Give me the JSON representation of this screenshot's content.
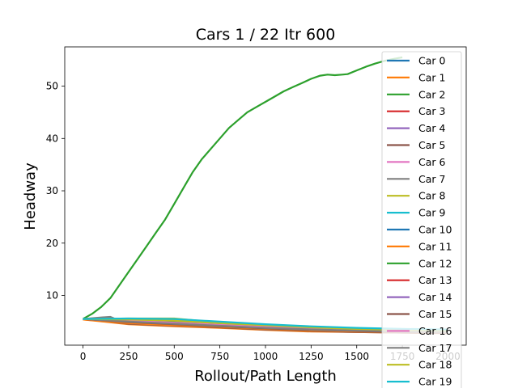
{
  "chart_data": {
    "type": "line",
    "title": "Cars 1 / 22 Itr 600",
    "xlabel": "Rollout/Path Length",
    "ylabel": "Headway",
    "xlim": [
      -100,
      2100
    ],
    "ylim": [
      0.5,
      57.5
    ],
    "xticks": [
      0,
      250,
      500,
      750,
      1000,
      1250,
      1500,
      1750,
      2000
    ],
    "yticks": [
      10,
      20,
      30,
      40,
      50
    ],
    "grid": false,
    "legend_position": "right",
    "series": [
      {
        "name": "Car 0",
        "color": "#1f77b4",
        "x": [
          0,
          250,
          500,
          750,
          1000,
          1250,
          1500,
          1750,
          2000
        ],
        "y": [
          5.5,
          5.0,
          4.7,
          4.3,
          3.9,
          3.6,
          3.4,
          3.2,
          3.1
        ]
      },
      {
        "name": "Car 1",
        "color": "#ff7f0e",
        "x": [
          0,
          250,
          500,
          750,
          1000,
          1250,
          1500,
          1750,
          2000
        ],
        "y": [
          5.4,
          4.5,
          4.1,
          3.8,
          3.4,
          3.1,
          3.0,
          2.9,
          2.8
        ]
      },
      {
        "name": "Car 2",
        "color": "#2ca02c",
        "x": [
          0,
          50,
          100,
          150,
          200,
          250,
          300,
          350,
          400,
          450,
          500,
          550,
          600,
          650,
          700,
          750,
          800,
          850,
          900,
          950,
          1000,
          1050,
          1100,
          1150,
          1200,
          1250,
          1300,
          1340,
          1380,
          1420,
          1450,
          1500,
          1550,
          1600,
          1650,
          1700,
          1750
        ],
        "y": [
          5.5,
          6.5,
          7.8,
          9.5,
          12.0,
          14.5,
          17.0,
          19.5,
          22.0,
          24.5,
          27.5,
          30.5,
          33.5,
          36.0,
          38.0,
          40.0,
          42.0,
          43.5,
          45.0,
          46.0,
          47.0,
          48.0,
          49.0,
          49.8,
          50.6,
          51.4,
          52.0,
          52.2,
          52.1,
          52.2,
          52.3,
          53.0,
          53.7,
          54.3,
          54.8,
          55.2,
          55.5
        ]
      },
      {
        "name": "Car 3",
        "color": "#d62728",
        "x": [
          0,
          250,
          500,
          750,
          1000,
          1250,
          1500,
          1750,
          2000
        ],
        "y": [
          5.5,
          4.8,
          4.4,
          4.0,
          3.6,
          3.3,
          3.1,
          3.0,
          2.9
        ]
      },
      {
        "name": "Car 4",
        "color": "#9467bd",
        "x": [
          0,
          250,
          500,
          750,
          1000,
          1250,
          1500,
          1750,
          2000
        ],
        "y": [
          5.5,
          4.9,
          4.5,
          4.1,
          3.7,
          3.4,
          3.2,
          3.1,
          3.0
        ]
      },
      {
        "name": "Car 5",
        "color": "#8c564b",
        "x": [
          0,
          250,
          500,
          750,
          1000,
          1250,
          1500,
          1750,
          2000
        ],
        "y": [
          5.5,
          4.6,
          4.2,
          3.9,
          3.5,
          3.2,
          3.0,
          2.9,
          2.8
        ]
      },
      {
        "name": "Car 6",
        "color": "#e377c2",
        "x": [
          0,
          250,
          500,
          750,
          1000,
          1250,
          1500,
          1750,
          2000
        ],
        "y": [
          5.5,
          5.1,
          4.8,
          4.4,
          4.0,
          3.7,
          3.5,
          3.3,
          3.2
        ]
      },
      {
        "name": "Car 7",
        "color": "#7f7f7f",
        "x": [
          0,
          100,
          150,
          200,
          250,
          500,
          750,
          1000,
          1250,
          1500,
          1750,
          2000
        ],
        "y": [
          5.5,
          5.8,
          5.9,
          5.2,
          4.9,
          4.5,
          4.1,
          3.7,
          3.4,
          3.2,
          3.1,
          3.0
        ]
      },
      {
        "name": "Car 8",
        "color": "#bcbd22",
        "x": [
          0,
          250,
          500,
          750,
          1000,
          1250,
          1500,
          1750,
          2000
        ],
        "y": [
          5.5,
          5.6,
          5.6,
          4.8,
          4.3,
          3.9,
          3.6,
          3.4,
          3.3
        ]
      },
      {
        "name": "Car 9",
        "color": "#17becf",
        "x": [
          0,
          250,
          500,
          750,
          1000,
          1250,
          1500,
          1750,
          2000
        ],
        "y": [
          5.5,
          5.5,
          5.4,
          4.9,
          4.4,
          4.0,
          3.7,
          3.5,
          3.4
        ]
      },
      {
        "name": "Car 10",
        "color": "#1f77b4",
        "x": [
          0,
          250,
          500,
          750,
          1000,
          1250,
          1500,
          1750,
          2000
        ],
        "y": [
          5.5,
          5.3,
          5.0,
          4.6,
          4.2,
          3.8,
          3.5,
          3.3,
          3.2
        ]
      },
      {
        "name": "Car 11",
        "color": "#ff7f0e",
        "x": [
          0,
          250,
          500,
          750,
          1000,
          1250,
          1500,
          1750,
          2000
        ],
        "y": [
          5.4,
          4.7,
          4.3,
          4.0,
          3.6,
          3.3,
          3.1,
          3.0,
          2.9
        ]
      },
      {
        "name": "Car 12",
        "color": "#2ca02c",
        "x": [
          0,
          250,
          500,
          750,
          1000,
          1250,
          1500,
          1750,
          2000
        ],
        "y": [
          5.5,
          5.2,
          4.9,
          4.5,
          4.1,
          3.8,
          3.6,
          3.4,
          3.3
        ]
      },
      {
        "name": "Car 13",
        "color": "#d62728",
        "x": [
          0,
          250,
          500,
          750,
          1000,
          1250,
          1500,
          1750,
          2000
        ],
        "y": [
          5.5,
          5.0,
          4.6,
          4.2,
          3.8,
          3.5,
          3.3,
          3.1,
          3.0
        ]
      },
      {
        "name": "Car 14",
        "color": "#9467bd",
        "x": [
          0,
          250,
          500,
          750,
          1000,
          1250,
          1500,
          1750,
          2000
        ],
        "y": [
          5.5,
          5.1,
          4.7,
          4.3,
          3.9,
          3.6,
          3.4,
          3.2,
          3.1
        ]
      },
      {
        "name": "Car 15",
        "color": "#8c564b",
        "x": [
          0,
          250,
          500,
          750,
          1000,
          1250,
          1500,
          1750,
          2000
        ],
        "y": [
          5.5,
          4.9,
          4.5,
          4.1,
          3.7,
          3.4,
          3.2,
          3.0,
          2.9
        ]
      },
      {
        "name": "Car 16",
        "color": "#e377c2",
        "x": [
          0,
          250,
          500,
          750,
          1000,
          1250,
          1500,
          1750,
          2000
        ],
        "y": [
          5.5,
          5.2,
          4.8,
          4.4,
          4.0,
          3.7,
          3.5,
          3.3,
          3.2
        ]
      },
      {
        "name": "Car 17",
        "color": "#7f7f7f",
        "x": [
          0,
          250,
          500,
          750,
          1000,
          1250,
          1500,
          1750,
          2000
        ],
        "y": [
          5.5,
          5.0,
          4.6,
          4.2,
          3.8,
          3.5,
          3.3,
          3.1,
          3.0
        ]
      },
      {
        "name": "Car 18",
        "color": "#bcbd22",
        "x": [
          0,
          250,
          500,
          750,
          1000,
          1250,
          1500,
          1750,
          2000
        ],
        "y": [
          5.5,
          5.4,
          5.2,
          4.7,
          4.3,
          3.9,
          3.6,
          3.4,
          3.3
        ]
      },
      {
        "name": "Car 19",
        "color": "#17becf",
        "x": [
          0,
          250,
          500,
          750,
          1000,
          1250,
          1500,
          1750,
          2000
        ],
        "y": [
          5.5,
          5.6,
          5.5,
          5.0,
          4.5,
          4.1,
          3.8,
          3.6,
          3.5
        ]
      }
    ]
  }
}
